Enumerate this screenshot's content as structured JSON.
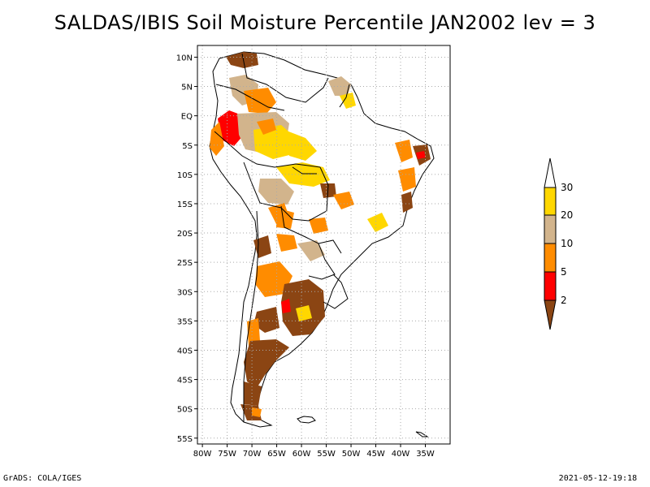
{
  "title": "SALDAS/IBIS Soil Moisture Percentile JAN2002 lev = 3",
  "map": {
    "region": "South America",
    "lon_range": [
      -81,
      -30
    ],
    "lat_range": [
      -56,
      12
    ],
    "lon_ticks": [
      {
        "label": "80W",
        "lon": -80
      },
      {
        "label": "75W",
        "lon": -75
      },
      {
        "label": "70W",
        "lon": -70
      },
      {
        "label": "65W",
        "lon": -65
      },
      {
        "label": "60W",
        "lon": -60
      },
      {
        "label": "55W",
        "lon": -55
      },
      {
        "label": "50W",
        "lon": -50
      },
      {
        "label": "45W",
        "lon": -45
      },
      {
        "label": "40W",
        "lon": -40
      },
      {
        "label": "35W",
        "lon": -35
      }
    ],
    "lat_ticks": [
      {
        "label": "10N",
        "lat": 10
      },
      {
        "label": "5N",
        "lat": 5
      },
      {
        "label": "EQ",
        "lat": 0
      },
      {
        "label": "5S",
        "lat": -5
      },
      {
        "label": "10S",
        "lat": -10
      },
      {
        "label": "15S",
        "lat": -15
      },
      {
        "label": "20S",
        "lat": -20
      },
      {
        "label": "25S",
        "lat": -25
      },
      {
        "label": "30S",
        "lat": -30
      },
      {
        "label": "35S",
        "lat": -35
      },
      {
        "label": "40S",
        "lat": -40
      },
      {
        "label": "45S",
        "lat": -45
      },
      {
        "label": "50S",
        "lat": -50
      },
      {
        "label": "55S",
        "lat": -55
      }
    ]
  },
  "legend": {
    "thresholds": [
      "2",
      "5",
      "10",
      "20",
      "30"
    ],
    "colors": {
      "below_2": "#8b4513",
      "2_5": "#ff0000",
      "5_10": "#ff8c00",
      "10_20": "#d2b48c",
      "20_30": "#ffd700",
      "above_30": "#ffffff"
    }
  },
  "footer": {
    "left": "GrADS: COLA/IGES",
    "right": "2021-05-12-19:18"
  }
}
